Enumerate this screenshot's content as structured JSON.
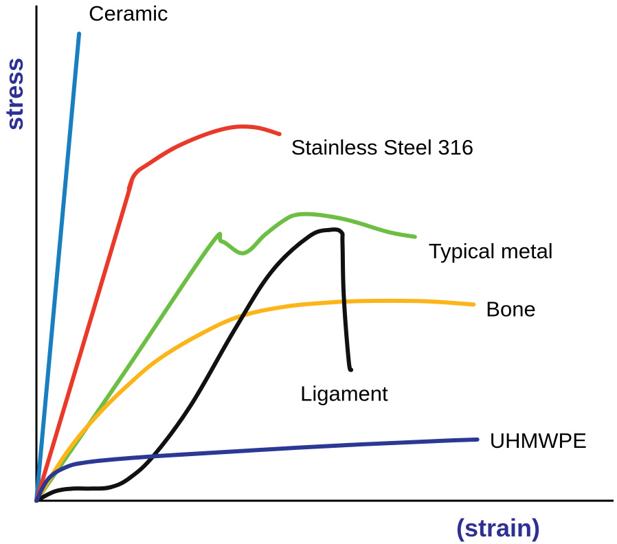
{
  "chart_data": {
    "type": "line",
    "title": "",
    "xlabel": "(strain)",
    "ylabel": "stress",
    "axis_color": "#2e3192",
    "x_ticks": false,
    "y_ticks": false,
    "grid": false,
    "legend": "none",
    "series": [
      {
        "name": "Ceramic",
        "color": "#1a7fc1",
        "x": [
          0,
          6.9
        ],
        "y": [
          0,
          100
        ]
      },
      {
        "name": "Stainless Steel 316",
        "color": "#e8392a",
        "x": [
          0,
          14,
          15,
          16,
          18,
          23,
          30,
          35,
          39.3
        ],
        "y": [
          0,
          62,
          67,
          70,
          72,
          76,
          79.5,
          80,
          78.5
        ]
      },
      {
        "name": "Typical metal",
        "color": "#6dbe45",
        "x": [
          0,
          14,
          28,
          30,
          33.5,
          37,
          40,
          42,
          45,
          49,
          52,
          57,
          61.2
        ],
        "y": [
          0,
          27,
          54.5,
          55.5,
          53,
          57,
          60,
          61.2,
          61.3,
          60.5,
          59.5,
          57.5,
          56.5
        ]
      },
      {
        "name": "Bone",
        "color": "#fbb519",
        "x": [
          0,
          5,
          10,
          15,
          20,
          27,
          33,
          40,
          48,
          55,
          63,
          70.7
        ],
        "y": [
          0,
          10.5,
          18.5,
          25,
          30.5,
          36,
          39.5,
          41.5,
          42.5,
          42.8,
          42.7,
          42
        ]
      },
      {
        "name": "Ligament",
        "color": "#111111",
        "x": [
          0,
          3,
          6,
          9,
          12,
          15,
          19,
          25,
          32,
          38,
          44,
          47.5,
          49.3,
          49.5,
          49.7,
          50.5,
          50.9
        ],
        "y": [
          0,
          2,
          2.6,
          2.6,
          2.9,
          4.8,
          9.7,
          20.5,
          36.5,
          49,
          56.5,
          58,
          57.5,
          55,
          44,
          30,
          28
        ]
      },
      {
        "name": "UHMWPE",
        "color": "#2b3894",
        "x": [
          0,
          2,
          5,
          8,
          12,
          20,
          35,
          50,
          65,
          71.3
        ],
        "y": [
          0,
          4.8,
          7.3,
          8.2,
          8.8,
          9.6,
          10.8,
          11.9,
          12.8,
          13.1
        ]
      }
    ]
  }
}
